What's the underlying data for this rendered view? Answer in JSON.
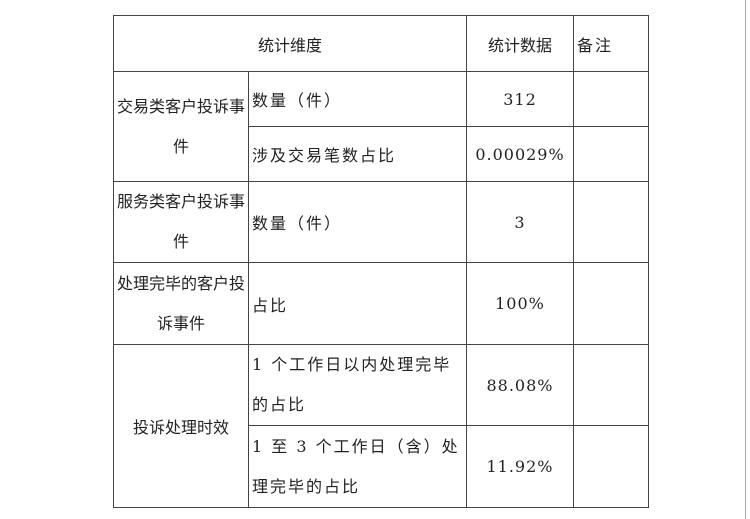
{
  "header": {
    "dimension": "统计维度",
    "data": "统计数据",
    "remarks": "备注"
  },
  "rows": [
    {
      "category": "交易类客户投诉事件",
      "items": [
        {
          "label": "数量（件）",
          "value": "312",
          "remark": ""
        },
        {
          "label": "涉及交易笔数占比",
          "value": "0.00029%",
          "remark": ""
        }
      ]
    },
    {
      "category": "服务类客户投诉事件",
      "items": [
        {
          "label": "数量（件）",
          "value": "3",
          "remark": ""
        }
      ]
    },
    {
      "category": "处理完毕的客户投诉事件",
      "items": [
        {
          "label": "占比",
          "value": "100%",
          "remark": ""
        }
      ]
    },
    {
      "category": "投诉处理时效",
      "items": [
        {
          "label": "1 个工作日以内处理完毕的占比",
          "value": "88.08%",
          "remark": ""
        },
        {
          "label": "1 至 3 个工作日（含）处理完毕的占比",
          "value": "11.92%",
          "remark": ""
        }
      ]
    }
  ]
}
